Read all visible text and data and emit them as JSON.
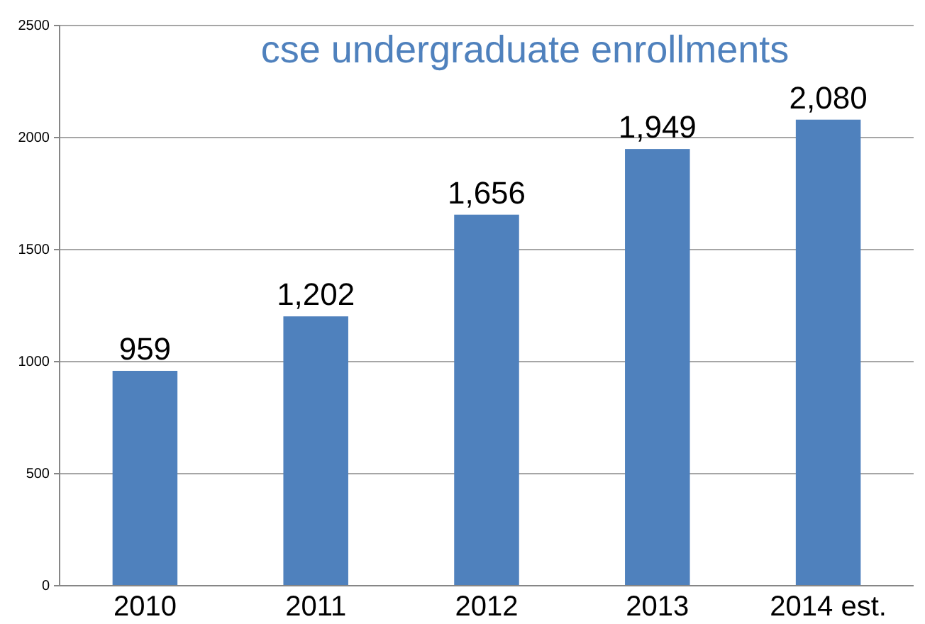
{
  "chart_data": {
    "type": "bar",
    "title": "cse undergraduate enrollments",
    "categories": [
      "2010",
      "2011",
      "2012",
      "2013",
      "2014 est."
    ],
    "values": [
      959,
      1202,
      1656,
      1949,
      2080
    ],
    "value_labels": [
      "959",
      "1,202",
      "1,656",
      "1,949",
      "2,080"
    ],
    "color": "#4f81bd",
    "ylim": [
      0,
      2500
    ],
    "yticks": [
      0,
      500,
      1000,
      1500,
      2000,
      2500
    ],
    "grid": "y"
  }
}
